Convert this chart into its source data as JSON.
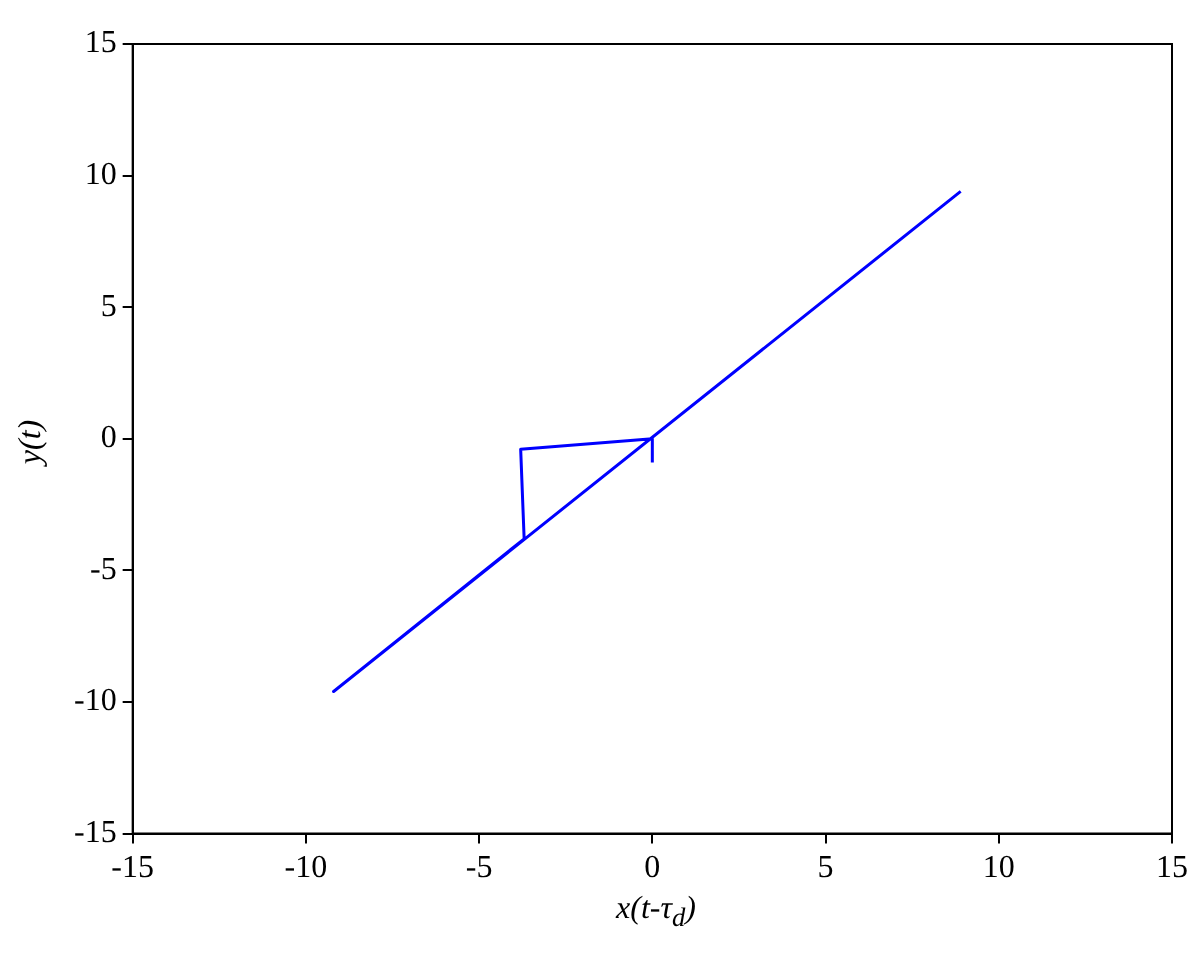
{
  "chart_data": {
    "type": "line",
    "xlabel": "x(t-τ$_{d}$)",
    "ylabel": "y(t)",
    "series": [
      {
        "color": "#0000ff",
        "x": [
          0,
          0,
          -3.8,
          -3.7,
          -9.2,
          8.9
        ],
        "values": [
          -0.9,
          0,
          -0.4,
          -3.8,
          -9.6,
          9.4
        ]
      }
    ],
    "xlim": [
      -15,
      15
    ],
    "xticks": [
      -15,
      -10,
      -5,
      0,
      5,
      10,
      15
    ],
    "ylim": [
      -15,
      15
    ],
    "yticks": [
      -15,
      -10,
      -5,
      0,
      5,
      10,
      15
    ],
    "grid": false,
    "legend": false,
    "marker": "none",
    "line_style": "solid"
  }
}
